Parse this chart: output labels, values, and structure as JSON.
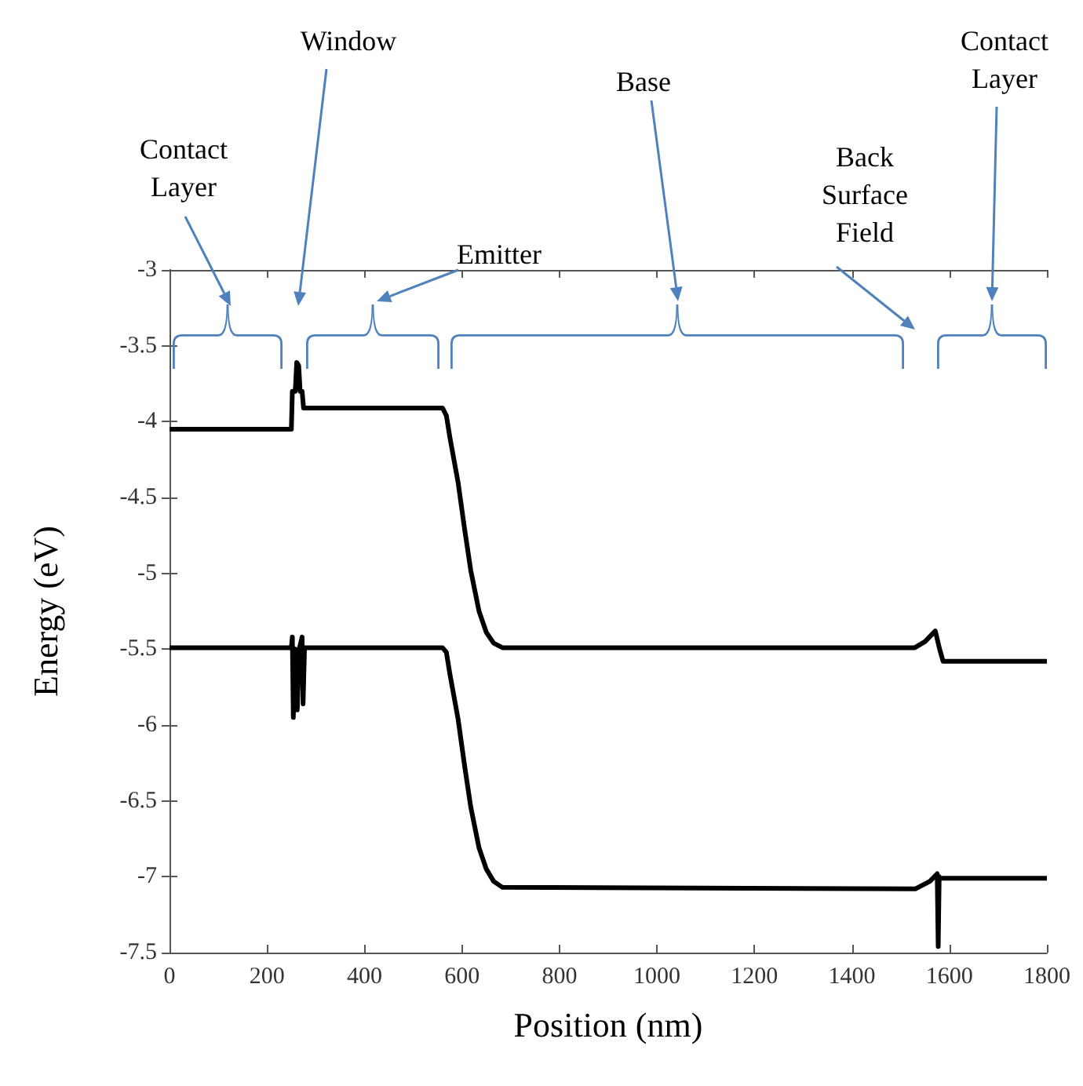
{
  "chart_data": {
    "type": "line",
    "xlabel": "Position (nm)",
    "ylabel": "Energy (eV)",
    "xlim": [
      0,
      1800
    ],
    "ylim": [
      -7.5,
      -3
    ],
    "xticks": [
      0,
      200,
      400,
      600,
      800,
      1000,
      1200,
      1400,
      1600,
      1800
    ],
    "yticks": [
      -7.5,
      -7,
      -6.5,
      -6,
      -5.5,
      -5,
      -4.5,
      -4,
      -3.5,
      -3
    ],
    "series": [
      {
        "color": "#000000",
        "x": [
          0,
          250,
          252,
          258,
          261,
          265,
          268,
          272,
          275,
          560,
          568,
          575,
          592,
          605,
          618,
          635,
          650,
          665,
          683,
          1529,
          1550,
          1571,
          1580,
          1587,
          1800
        ],
        "values": [
          -4.05,
          -4.05,
          -3.8,
          -3.8,
          -3.61,
          -3.63,
          -3.8,
          -3.8,
          -3.91,
          -3.91,
          -3.96,
          -4.1,
          -4.4,
          -4.7,
          -4.98,
          -5.25,
          -5.39,
          -5.46,
          -5.49,
          -5.49,
          -5.45,
          -5.38,
          -5.5,
          -5.58,
          -5.58
        ]
      },
      {
        "color": "#000000",
        "x": [
          0,
          250,
          252,
          254,
          258,
          262,
          266,
          272,
          274,
          277,
          560,
          568,
          575,
          592,
          605,
          618,
          635,
          650,
          665,
          683,
          1530,
          1560,
          1575,
          1577,
          1579,
          1581,
          1800
        ],
        "values": [
          -5.49,
          -5.49,
          -5.42,
          -5.95,
          -5.5,
          -5.9,
          -5.5,
          -5.42,
          -5.86,
          -5.49,
          -5.49,
          -5.52,
          -5.66,
          -5.96,
          -6.26,
          -6.54,
          -6.81,
          -6.95,
          -7.03,
          -7.07,
          -7.08,
          -7.03,
          -6.98,
          -7.46,
          -7.0,
          -7.01,
          -7.01
        ]
      }
    ],
    "annotations": [
      "Contact Layer",
      "Window",
      "Emitter",
      "Base",
      "Back Surface Field",
      "Contact Layer"
    ]
  }
}
